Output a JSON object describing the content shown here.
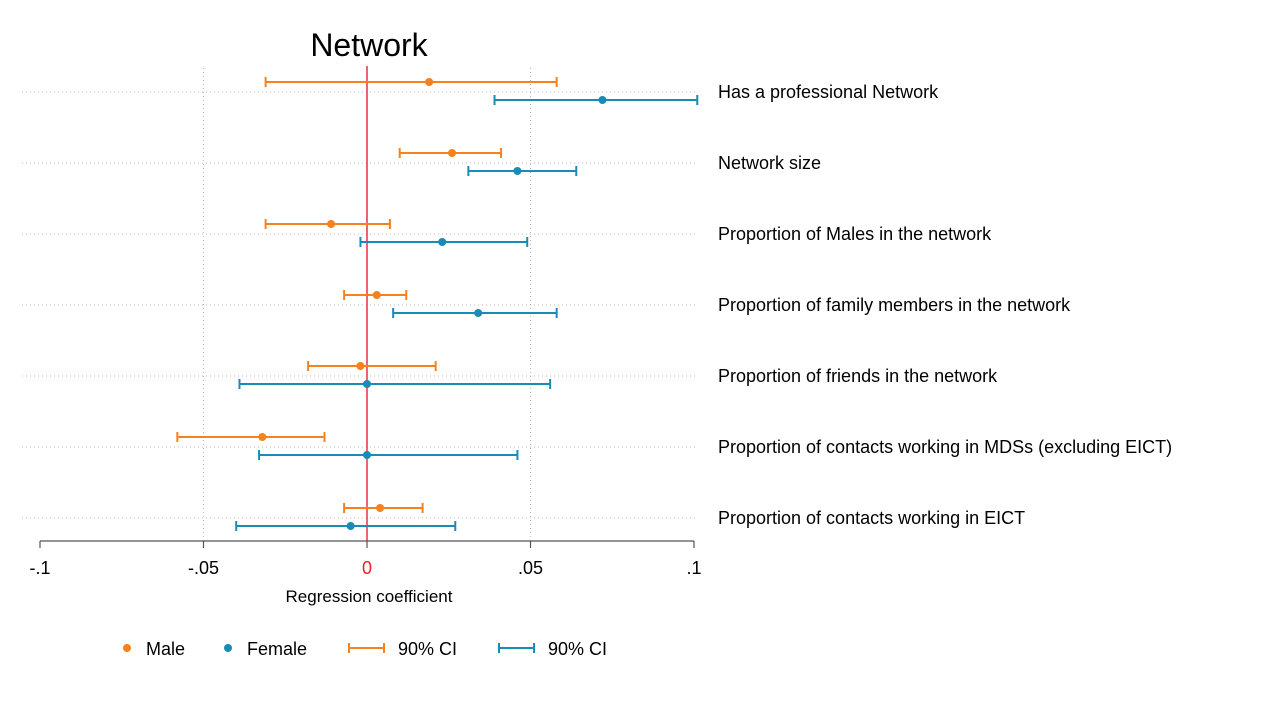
{
  "chart_data": {
    "type": "scatter",
    "title": "Network",
    "xlabel": "Regression coefficient",
    "ylabel": "",
    "xlim": [
      -0.1,
      0.1
    ],
    "xticks": [
      {
        "value": -0.1,
        "label": "-.1"
      },
      {
        "value": -0.05,
        "label": "-.05"
      },
      {
        "value": 0,
        "label": "0"
      },
      {
        "value": 0.05,
        "label": ".05"
      },
      {
        "value": 0.1,
        "label": ".1"
      }
    ],
    "reference_line": {
      "x": 0,
      "color": "#e8232a"
    },
    "grid": true,
    "legend_position": "bottom",
    "categories": [
      "Has a professional Network",
      "Network size",
      "Proportion of Males in the network",
      "Proportion of family members in the network",
      "Proportion of friends in the network",
      "Proportion of contacts working in MDSs (excluding EICT)",
      "Proportion of contacts working in EICT"
    ],
    "series": [
      {
        "name": "Male",
        "ci_name": "90% CI",
        "color": "#f5821f",
        "estimate": [
          0.019,
          0.026,
          -0.011,
          0.003,
          -0.002,
          -0.032,
          0.004
        ],
        "ci_low": [
          -0.031,
          0.01,
          -0.031,
          -0.007,
          -0.018,
          -0.058,
          -0.007
        ],
        "ci_high": [
          0.058,
          0.041,
          0.007,
          0.012,
          0.021,
          -0.013,
          0.017
        ]
      },
      {
        "name": "Female",
        "ci_name": "90% CI",
        "color": "#1a8bb7",
        "estimate": [
          0.072,
          0.046,
          0.023,
          0.034,
          0.0,
          0.0,
          -0.005
        ],
        "ci_low": [
          0.039,
          0.031,
          -0.002,
          0.008,
          -0.039,
          -0.033,
          -0.04
        ],
        "ci_high": [
          0.101,
          0.064,
          0.049,
          0.058,
          0.056,
          0.046,
          0.027
        ]
      }
    ]
  }
}
